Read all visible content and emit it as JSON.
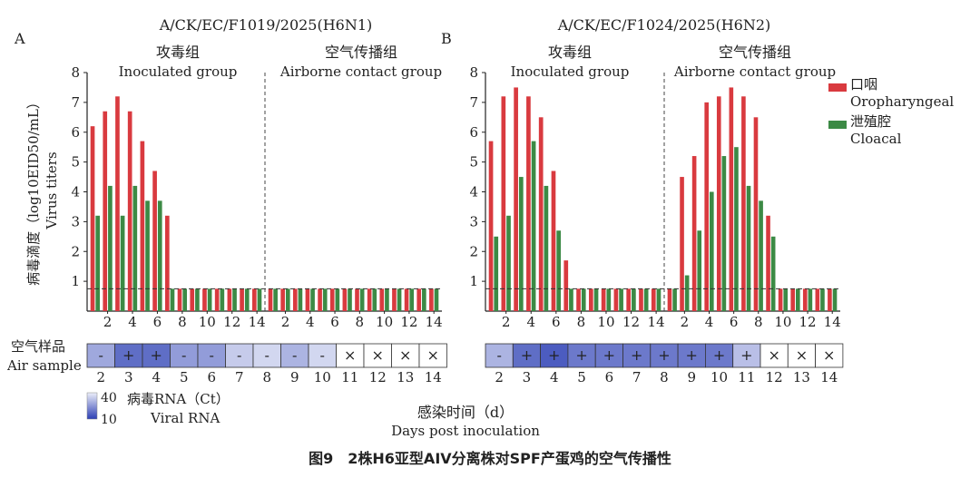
{
  "figure": {
    "caption": "图9　2株H6亚型AIV分离株对SPF产蛋鸡的空气传播性",
    "y_label_cn": "病毒滴度（log10EID50/mL）",
    "y_label_en": "Virus titers",
    "x_label_cn": "感染时间（d）",
    "x_label_en": "Days post inoculation",
    "air_label_cn": "空气样品",
    "air_label_en": "Air sample",
    "rna_label_cn": "病毒RNA（Ct）",
    "rna_label_en": "Viral RNA",
    "rna_scale_top": "40",
    "rna_scale_bottom": "10",
    "legend": {
      "oro_cn": "口咽",
      "oro_en": "Oropharyngeal",
      "clo_cn": "泄殖腔",
      "clo_en": "Cloacal",
      "oro_color": "#d93a3f",
      "clo_color": "#3c8a45"
    }
  },
  "chart_data": [
    {
      "type": "bar",
      "panel": "A",
      "title": "A/CK/EC/F1019/2025(H6N1)",
      "group_inoc_cn": "攻毒组",
      "group_inoc_en": "Inoculated group",
      "group_air_cn": "空气传播组",
      "group_air_en": "Airborne contact group",
      "ylim": [
        0,
        8
      ],
      "y_ticks": [
        "1",
        "2",
        "3",
        "4",
        "5",
        "6",
        "7",
        "8"
      ],
      "detection_limit": 0.75,
      "inoc_ticks": [
        "2",
        "4",
        "6",
        "8",
        "10",
        "12",
        "14"
      ],
      "air_ticks": [
        "2",
        "4",
        "6",
        "8",
        "10",
        "12",
        "14"
      ],
      "inoculated": {
        "days": [
          "1",
          "2",
          "3",
          "4",
          "5",
          "6",
          "7",
          "8",
          "9",
          "10",
          "11",
          "12",
          "13",
          "14"
        ],
        "oropharyngeal": [
          6.2,
          6.7,
          7.2,
          6.7,
          5.7,
          4.7,
          3.2,
          0.75,
          0.75,
          0.75,
          0.75,
          0.75,
          0.75,
          0.75
        ],
        "cloacal": [
          3.2,
          4.2,
          3.2,
          4.2,
          3.7,
          3.7,
          0.75,
          0.75,
          0.75,
          0.75,
          0.75,
          0.75,
          0.75,
          0.75
        ]
      },
      "airborne": {
        "days": [
          "1",
          "2",
          "3",
          "4",
          "5",
          "6",
          "7",
          "8",
          "9",
          "10",
          "11",
          "12",
          "13",
          "14"
        ],
        "oropharyngeal": [
          0.75,
          0.75,
          0.75,
          0.75,
          0.75,
          0.75,
          0.75,
          0.75,
          0.75,
          0.75,
          0.75,
          0.75,
          0.75,
          0.75
        ],
        "cloacal": [
          0.75,
          0.75,
          0.75,
          0.75,
          0.75,
          0.75,
          0.75,
          0.75,
          0.75,
          0.75,
          0.75,
          0.75,
          0.75,
          0.75
        ]
      },
      "air_sample": [
        {
          "day": "2",
          "mark": "-",
          "ct": 28
        },
        {
          "day": "3",
          "mark": "+",
          "ct": 18
        },
        {
          "day": "4",
          "mark": "+",
          "ct": 18
        },
        {
          "day": "5",
          "mark": "-",
          "ct": 26
        },
        {
          "day": "6",
          "mark": "-",
          "ct": 26
        },
        {
          "day": "7",
          "mark": "-",
          "ct": 34
        },
        {
          "day": "8",
          "mark": "-",
          "ct": 36
        },
        {
          "day": "9",
          "mark": "-",
          "ct": 30
        },
        {
          "day": "10",
          "mark": "-",
          "ct": 36
        },
        {
          "day": "11",
          "mark": "×",
          "ct": null
        },
        {
          "day": "12",
          "mark": "×",
          "ct": null
        },
        {
          "day": "13",
          "mark": "×",
          "ct": null
        },
        {
          "day": "14",
          "mark": "×",
          "ct": null
        }
      ]
    },
    {
      "type": "bar",
      "panel": "B",
      "title": "A/CK/EC/F1024/2025(H6N2)",
      "group_inoc_cn": "攻毒组",
      "group_inoc_en": "Inoculated group",
      "group_air_cn": "空气传播组",
      "group_air_en": "Airborne contact group",
      "ylim": [
        0,
        8
      ],
      "y_ticks": [
        "1",
        "2",
        "3",
        "4",
        "5",
        "6",
        "7",
        "8"
      ],
      "detection_limit": 0.75,
      "inoc_ticks": [
        "2",
        "4",
        "6",
        "8",
        "10",
        "12",
        "14"
      ],
      "air_ticks": [
        "2",
        "4",
        "6",
        "8",
        "10",
        "12",
        "14"
      ],
      "inoculated": {
        "days": [
          "1",
          "2",
          "3",
          "4",
          "5",
          "6",
          "7",
          "8",
          "9",
          "10",
          "11",
          "12",
          "13",
          "14"
        ],
        "oropharyngeal": [
          5.7,
          7.2,
          7.5,
          7.2,
          6.5,
          4.7,
          1.7,
          0.75,
          0.75,
          0.75,
          0.75,
          0.75,
          0.75,
          0.75
        ],
        "cloacal": [
          2.5,
          3.2,
          4.5,
          5.7,
          4.2,
          2.7,
          0.75,
          0.75,
          0.75,
          0.75,
          0.75,
          0.75,
          0.75,
          0.75
        ]
      },
      "airborne": {
        "days": [
          "1",
          "2",
          "3",
          "4",
          "5",
          "6",
          "7",
          "8",
          "9",
          "10",
          "11",
          "12",
          "13",
          "14"
        ],
        "oropharyngeal": [
          0.75,
          4.5,
          5.2,
          7.0,
          7.2,
          7.5,
          7.2,
          6.5,
          3.2,
          0.75,
          0.75,
          0.75,
          0.75,
          0.75
        ],
        "cloacal": [
          0.75,
          1.2,
          2.7,
          4.0,
          5.2,
          5.5,
          4.2,
          3.7,
          2.5,
          0.75,
          0.75,
          0.75,
          0.75,
          0.75
        ]
      },
      "air_sample": [
        {
          "day": "2",
          "mark": "-",
          "ct": 30
        },
        {
          "day": "3",
          "mark": "+",
          "ct": 18
        },
        {
          "day": "4",
          "mark": "+",
          "ct": 15
        },
        {
          "day": "5",
          "mark": "+",
          "ct": 20
        },
        {
          "day": "6",
          "mark": "+",
          "ct": 20
        },
        {
          "day": "7",
          "mark": "+",
          "ct": 20
        },
        {
          "day": "8",
          "mark": "+",
          "ct": 20
        },
        {
          "day": "9",
          "mark": "+",
          "ct": 20
        },
        {
          "day": "10",
          "mark": "+",
          "ct": 20
        },
        {
          "day": "11",
          "mark": "+",
          "ct": 32
        },
        {
          "day": "12",
          "mark": "×",
          "ct": null
        },
        {
          "day": "13",
          "mark": "×",
          "ct": null
        },
        {
          "day": "14",
          "mark": "×",
          "ct": null
        }
      ]
    }
  ]
}
